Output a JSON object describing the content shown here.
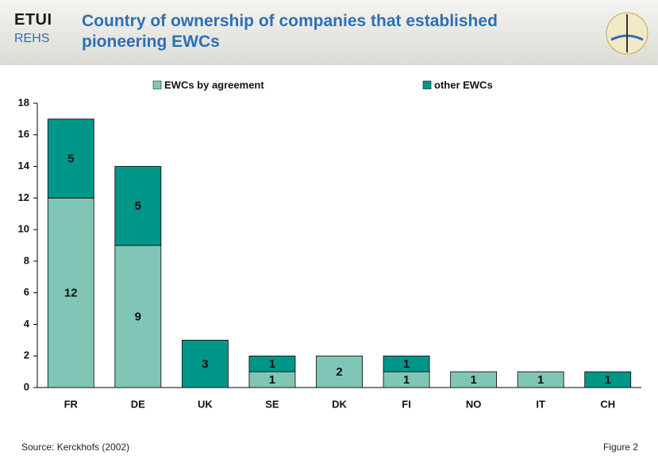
{
  "header": {
    "logo_top": "ETUI",
    "logo_bottom": "REHS"
  },
  "chart_data": {
    "type": "stacked-bar",
    "title": "Country of ownership of companies that established pioneering EWCs",
    "categories": [
      "FR",
      "DE",
      "UK",
      "SE",
      "DK",
      "FI",
      "NO",
      "IT",
      "CH"
    ],
    "series": [
      {
        "name": "EWCs by agreement",
        "color": "#80c6b6",
        "values": [
          12,
          9,
          null,
          1,
          2,
          1,
          1,
          1,
          null
        ]
      },
      {
        "name": "other EWCs",
        "color": "#00968a",
        "values": [
          5,
          5,
          3,
          1,
          null,
          1,
          null,
          null,
          1
        ]
      }
    ],
    "ylim": [
      0,
      18
    ],
    "yticks": [
      0,
      2,
      4,
      6,
      8,
      10,
      12,
      14,
      16,
      18
    ],
    "legend": "top"
  },
  "footer": {
    "source": "Source: Kerckhofs (2002)",
    "figure": "Figure 2"
  }
}
